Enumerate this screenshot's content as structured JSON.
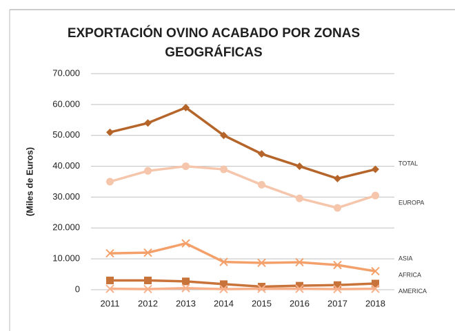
{
  "chart_data": {
    "type": "line",
    "title": [
      "EXPORTACIÓN OVINO ACABADO POR ZONAS",
      "GEOGRÁFICAS"
    ],
    "y_label": "(Miles de Euros)",
    "categories": [
      "2011",
      "2012",
      "2013",
      "2014",
      "2015",
      "2016",
      "2017",
      "2018"
    ],
    "series": [
      {
        "name": "TOTAL",
        "color": "#b5652a",
        "marker": "diamond",
        "values": [
          51000,
          54000,
          59000,
          50000,
          44000,
          40000,
          36000,
          39000
        ]
      },
      {
        "name": "EUROPA",
        "color": "#f5c6ab",
        "marker": "circle",
        "values": [
          35000,
          38500,
          40000,
          39000,
          34000,
          29600,
          26500,
          30500
        ]
      },
      {
        "name": "ASIA",
        "color": "#f4a06a",
        "marker": "x",
        "values": [
          11800,
          12000,
          15000,
          9000,
          8700,
          8900,
          8000,
          6000
        ]
      },
      {
        "name": "AFRICA",
        "color": "#c8733a",
        "marker": "square",
        "values": [
          3000,
          3000,
          2700,
          1800,
          1000,
          1300,
          1500,
          2000
        ]
      },
      {
        "name": "AMERICA",
        "color": "#f7b08a",
        "marker": "x",
        "values": [
          300,
          200,
          500,
          200,
          300,
          300,
          200,
          300
        ]
      }
    ],
    "ylim": [
      0,
      70000
    ],
    "yticks": [
      0,
      {
        "value": 10000,
        "label": "10.000"
      },
      {
        "value": 20000,
        "label": "20.000"
      },
      {
        "value": 30000,
        "label": "30.000"
      },
      {
        "value": 40000,
        "label": "40.000"
      },
      {
        "value": 50000,
        "label": "50.000"
      },
      {
        "value": 60000,
        "label": "60.000"
      },
      {
        "value": 70000,
        "label": "70.000"
      }
    ],
    "grid": true
  }
}
